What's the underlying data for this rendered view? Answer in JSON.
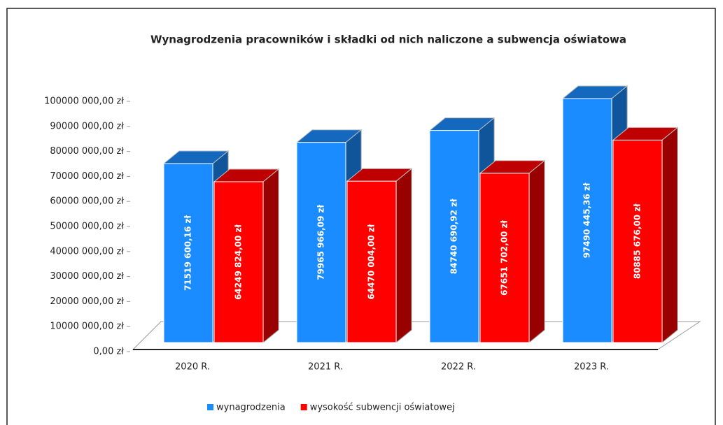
{
  "chart_data": {
    "type": "bar3d",
    "title": "Wynagrodzenia pracowników i składki od nich naliczone a subwencja oświatowa",
    "categories": [
      "2020 R.",
      "2021 R.",
      "2022 R.",
      "2023 R."
    ],
    "series": [
      {
        "name": "wynagrodzenia",
        "color": "#1a8cff",
        "values": [
          71519600.16,
          79965966.09,
          84740690.92,
          97490445.36
        ],
        "value_labels": [
          "71519 600,16 zł",
          "79965 966,09 zł",
          "84740 690,92 zł",
          "97490 445,36 zł"
        ]
      },
      {
        "name": "wysokość subwencji oświatowej",
        "color": "#ff0000",
        "values": [
          64249824.0,
          64470004.0,
          67651702.0,
          80885676.0
        ],
        "value_labels": [
          "64249 824,00 zł",
          "64470 004,00 zł",
          "67651 702,00 zł",
          "80885 676,00 zł"
        ]
      }
    ],
    "ylim": [
      0,
      100000000
    ],
    "yticks": [
      {
        "value": 0,
        "label": "0,00 zł"
      },
      {
        "value": 10000000,
        "label": "10000 000,00 zł"
      },
      {
        "value": 20000000,
        "label": "20000 000,00 zł"
      },
      {
        "value": 30000000,
        "label": "30000 000,00 zł"
      },
      {
        "value": 40000000,
        "label": "40000 000,00 zł"
      },
      {
        "value": 50000000,
        "label": "50000 000,00 zł"
      },
      {
        "value": 60000000,
        "label": "60000 000,00 zł"
      },
      {
        "value": 70000000,
        "label": "70000 000,00 zł"
      },
      {
        "value": 80000000,
        "label": "80000 000,00 zł"
      },
      {
        "value": 90000000,
        "label": "90000 000,00 zł"
      },
      {
        "value": 100000000,
        "label": "100000 000,00 zł"
      }
    ],
    "legend": "bottom"
  }
}
